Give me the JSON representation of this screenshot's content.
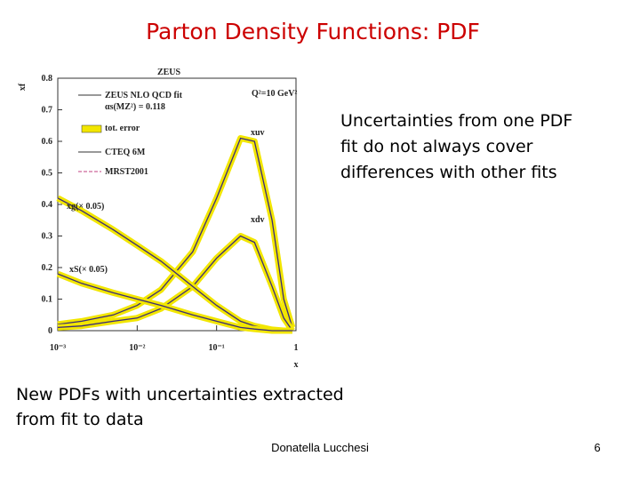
{
  "slide": {
    "title": "Parton Density Functions: PDF",
    "note_lines": [
      "Uncertainties from one PDF",
      "fit do not always cover",
      "differences with other fits"
    ],
    "caption_lines": [
      "New PDFs with uncertainties extracted",
      "from fit to data"
    ],
    "footer": "Donatella Lucchesi",
    "page_number": "6"
  },
  "chart_data": {
    "type": "line",
    "title": "ZEUS",
    "ylabel": "xf",
    "xlabel": "x",
    "annotation": "Q²=10 GeV²",
    "legend": [
      "ZEUS NLO QCD fit",
      "αs(MZ²) = 0.118",
      "tot. error",
      "CTEQ 6M",
      "MRST2001"
    ],
    "error_band_color": "#f2e600",
    "log_x": true,
    "xlim": [
      0.001,
      1
    ],
    "xticks": [
      {
        "value": 0.001,
        "label": "10⁻³"
      },
      {
        "value": 0.01,
        "label": "10⁻²"
      },
      {
        "value": 0.1,
        "label": "10⁻¹"
      },
      1
    ],
    "ylim": [
      0,
      0.8
    ],
    "yticks": [
      0,
      0.1,
      0.2,
      0.3,
      0.4,
      0.5,
      0.6,
      0.7,
      0.8
    ],
    "x": [
      0.001,
      0.002,
      0.005,
      0.01,
      0.02,
      0.05,
      0.1,
      0.2,
      0.3,
      0.5,
      0.7,
      0.9
    ],
    "series": [
      {
        "name": "xuv",
        "color": "#3a2a7a",
        "values": [
          0.02,
          0.03,
          0.05,
          0.08,
          0.13,
          0.25,
          0.42,
          0.61,
          0.6,
          0.35,
          0.1,
          0.01
        ]
      },
      {
        "name": "xdv",
        "color": "#3a2a7a",
        "values": [
          0.01,
          0.015,
          0.03,
          0.04,
          0.07,
          0.14,
          0.23,
          0.3,
          0.28,
          0.14,
          0.04,
          0
        ]
      },
      {
        "name": "xg(× 0.05)",
        "color": "#3a2a7a",
        "values": [
          0.42,
          0.38,
          0.32,
          0.27,
          0.22,
          0.14,
          0.08,
          0.03,
          0.015,
          0.003,
          0,
          0
        ]
      },
      {
        "name": "xS(× 0.05)",
        "color": "#3a2a7a",
        "values": [
          0.18,
          0.15,
          0.12,
          0.1,
          0.08,
          0.05,
          0.03,
          0.01,
          0.005,
          0,
          0,
          0
        ]
      }
    ]
  }
}
